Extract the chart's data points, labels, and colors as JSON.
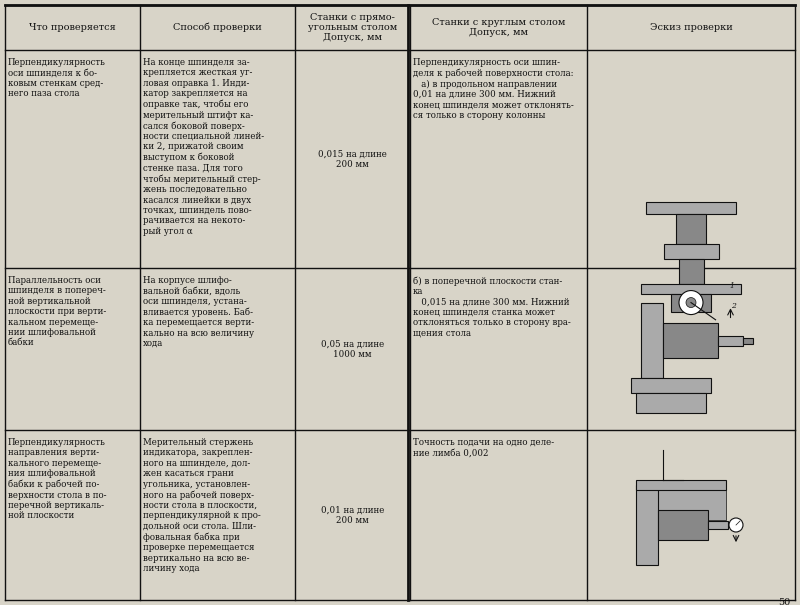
{
  "bg_color": "#d8d4c8",
  "line_color": "#111111",
  "text_color": "#111111",
  "header_fontsize": 7.0,
  "body_fontsize": 6.2,
  "col_headers": [
    "Что проверяется",
    "Способ проверки",
    "Станки с прямо-\nугольным столом\nДопуск, мм",
    "Станки с круглым столом\nДопуск, мм",
    "Эскиз проверки"
  ],
  "rows": [
    {
      "col1": "Перпендикулярность\nоси шпинделя к бо-\nковым стенкам сред-\nнего паза стола",
      "col2": "На конце шпинделя за-\nкрепляется жесткая уг-\nловая оправка 1. Инди-\nкатор закрепляется на\nоправке так, чтобы его\nмерительный штифт ка-\nсался боковой поверх-\nности специальной линей-\nки 2, прижатой своим\nвыступом к боковой\nстенке паза. Для того\nчтобы мерительный стер-\nжень последовательно\nкасался линейки в двух\nточках, шпиндель пово-\nрачивается на некото-\nрый угол α",
      "col3": "0,015 на длине\n200 мм",
      "col4": "Перпендикулярность оси шпин-\nделя к рабочей поверхности стола:\n   а) в продольном направлении\n0,01 на длине 300 мм. Нижний\nконец шпинделя может отклонять-\nся только в сторону колонны"
    },
    {
      "col1": "Параллельность оси\nшпинделя в попереч-\nной вертикальной\nплоскости при верти-\nкальном перемеще-\nнии шлифовальной\nбабки",
      "col2": "На корпусе шлифо-\nвальной бабки, вдоль\nоси шпинделя, устана-\nвливается уровень. Баб-\nка перемещается верти-\nкально на всю величину\nхода",
      "col3": "0,05 на длине\n1000 мм",
      "col4": "б) в поперечной плоскости стан-\nка\n   0,015 на длине 300 мм. Нижний\nконец шпинделя станка может\nотклоняться только в сторону вра-\nщения стола"
    },
    {
      "col1": "Перпендикулярность\nнаправления верти-\nкального перемеще-\nния шлифовальной\nбабки к рабочей по-\nверхности стола в по-\nперечной вертикаль-\nной плоскости",
      "col2": "Мерительный стержень\nиндикатора, закреплен-\nного на шпинделе, дол-\nжен касаться грани\nугольника, установлен-\nного на рабочей поверх-\nности стола в плоскости,\nперпендикулярной к про-\nдольной оси стола. Шли-\nфовальная бабка при\nпроверке перемещается\nвертикально на всю ве-\nличину хода",
      "col3": "0,01 на длине\n200 мм",
      "col4": "Точность подачи на одно деле-\nние лимба 0,002"
    }
  ]
}
